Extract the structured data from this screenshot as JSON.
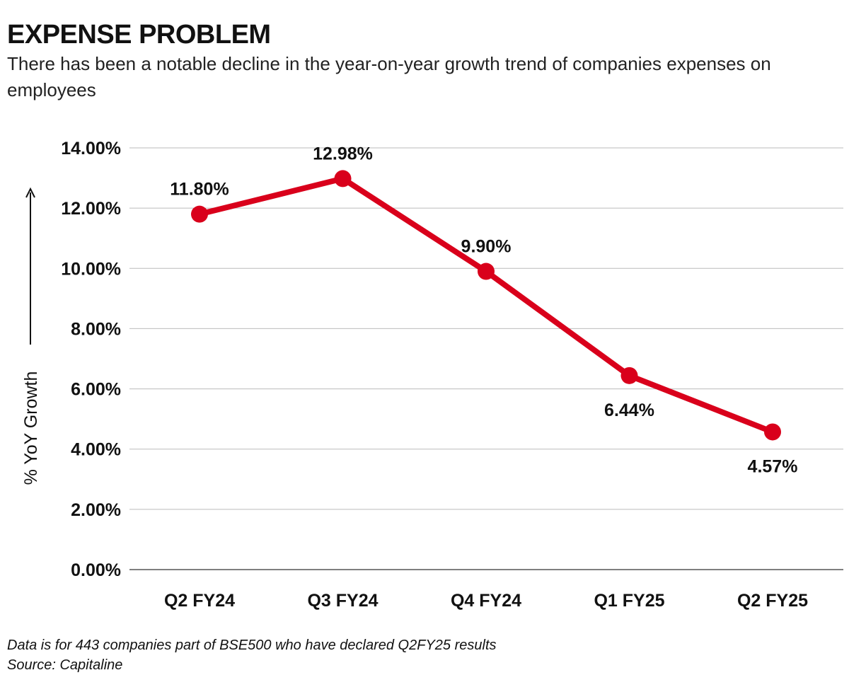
{
  "header": {
    "title": "EXPENSE PROBLEM",
    "subtitle": "There has been a notable decline in the year-on-year growth trend of companies expenses on employees"
  },
  "chart_data": {
    "type": "line",
    "title": "EXPENSE PROBLEM",
    "subtitle": "There has been a notable decline in the year-on-year growth trend of companies expenses on employees",
    "xlabel": "",
    "ylabel": "% YoY Growth",
    "categories": [
      "Q2 FY24",
      "Q3 FY24",
      "Q4 FY24",
      "Q1 FY25",
      "Q2 FY25"
    ],
    "values": [
      11.8,
      12.98,
      9.9,
      6.44,
      4.57
    ],
    "data_labels": [
      "11.80%",
      "12.98%",
      "9.90%",
      "6.44%",
      "4.57%"
    ],
    "label_positions": [
      "above",
      "above",
      "above",
      "below",
      "below"
    ],
    "ylim": [
      0,
      14
    ],
    "yticks": [
      0,
      2,
      4,
      6,
      8,
      10,
      12,
      14
    ],
    "ytick_labels": [
      "0.00%",
      "2.00%",
      "4.00%",
      "6.00%",
      "8.00%",
      "10.00%",
      "12.00%",
      "14.00%"
    ],
    "grid": true,
    "legend": "none",
    "colors": {
      "line": "#d9001b",
      "grid": "#bbbbbb",
      "axis": "#555555"
    }
  },
  "footer": {
    "note": "Data is for 443 companies part of BSE500 who have declared Q2FY25 results",
    "source": "Source: Capitaline"
  }
}
